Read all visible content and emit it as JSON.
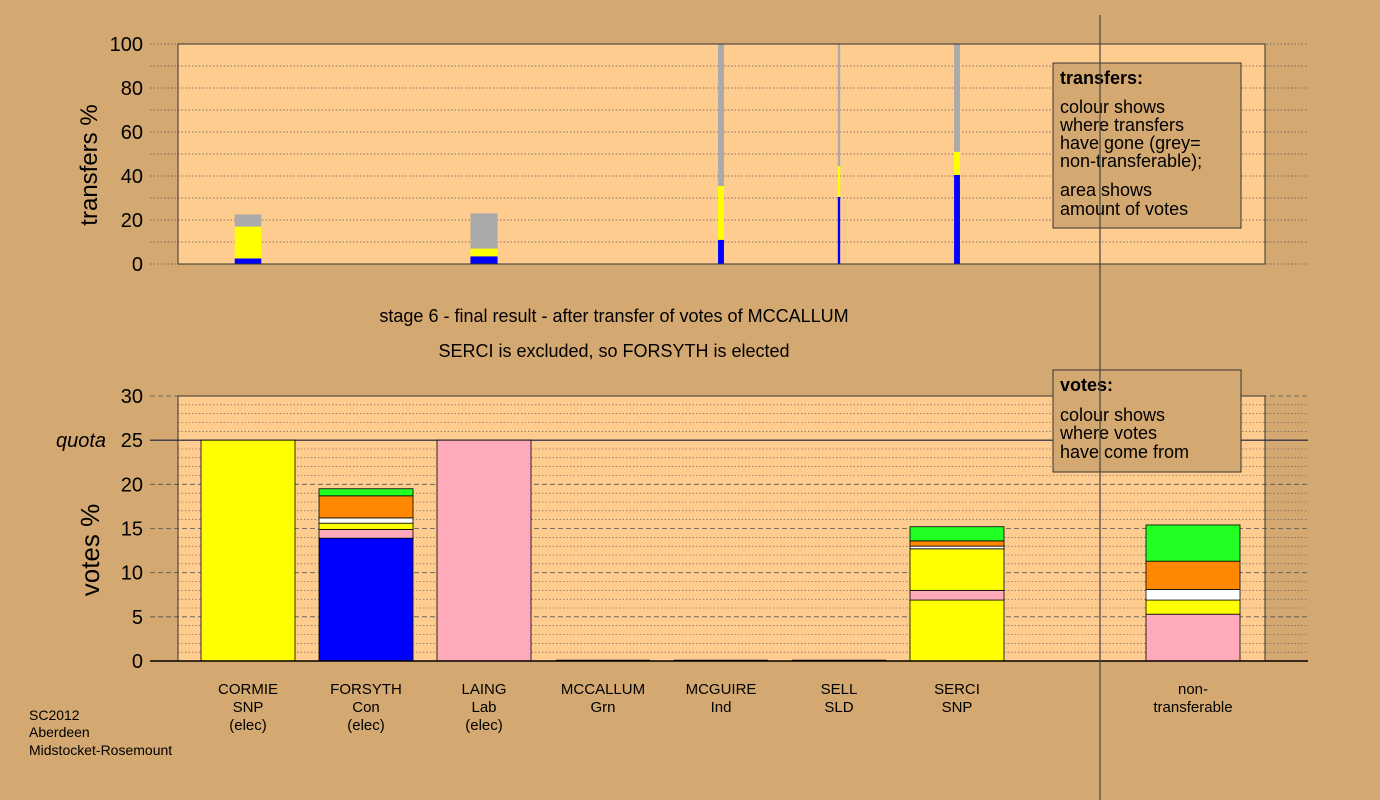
{
  "subtitle_lines": [
    "stage 6 - final result - after transfer of votes of MCCALLUM",
    "SERCI is excluded, so FORSYTH is elected"
  ],
  "footer_lines": [
    "SC2012",
    "Aberdeen",
    "Midstocket-Rosemount"
  ],
  "colors": {
    "background": "#d4a871",
    "plot": "#ffcc8f",
    "SNP": "#ffff00",
    "Con": "#0000ff",
    "Lab": "#ffaabb",
    "Grn": "#22ff22",
    "Ind": "#ff8800",
    "SLD": "#ffffff",
    "nontransferable": "#aaaaaa"
  },
  "chart_data": [
    {
      "type": "bar",
      "stacked": true,
      "ylabel": "transfers %",
      "ylim": [
        0,
        100
      ],
      "yticks": [
        0,
        20,
        40,
        60,
        80,
        100
      ],
      "legend": {
        "position": "top-right",
        "title": "transfers:",
        "lines": [
          "colour shows",
          "where transfers",
          "have gone (grey=",
          "non-transferable);",
          "area shows",
          "amount of votes"
        ]
      },
      "bars": [
        {
          "column": "CORMIE",
          "width_pct": 22.5,
          "segments": [
            {
              "party": "Con",
              "value": 2.5
            },
            {
              "party": "SNP",
              "value": 14.5
            },
            {
              "party": "nontransferable",
              "value": 5.5
            }
          ]
        },
        {
          "column": "LAING",
          "width_pct": 23.0,
          "segments": [
            {
              "party": "Con",
              "value": 3.5
            },
            {
              "party": "SNP",
              "value": 3.5
            },
            {
              "party": "nontransferable",
              "value": 16.0
            }
          ]
        },
        {
          "column": "MCGUIRE",
          "width_pct": 5.0,
          "segments": [
            {
              "party": "Con",
              "value": 11.0
            },
            {
              "party": "SNP",
              "value": 24.5
            },
            {
              "party": "nontransferable",
              "value": 64.5
            }
          ]
        },
        {
          "column": "SELL",
          "width_pct": 2.0,
          "segments": [
            {
              "party": "Con",
              "value": 30.5
            },
            {
              "party": "SNP",
              "value": 14.0
            },
            {
              "party": "nontransferable",
              "value": 55.5
            }
          ]
        },
        {
          "column": "SERCI",
          "width_pct": 5.0,
          "segments": [
            {
              "party": "Con",
              "value": 40.5
            },
            {
              "party": "SNP",
              "value": 10.5
            },
            {
              "party": "nontransferable",
              "value": 49.0
            }
          ]
        }
      ]
    },
    {
      "type": "bar",
      "stacked": true,
      "ylabel": "votes %",
      "ylim": [
        0,
        30
      ],
      "yticks": [
        0,
        5,
        10,
        15,
        20,
        25,
        30
      ],
      "quota": {
        "label": "quota",
        "value": 25
      },
      "legend": {
        "position": "top-right",
        "title": "votes:",
        "lines": [
          "colour shows",
          "where votes",
          "have come from"
        ]
      },
      "categories": [
        {
          "lines": [
            "CORMIE",
            "SNP",
            "(elec)"
          ]
        },
        {
          "lines": [
            "FORSYTH",
            "Con",
            "(elec)"
          ]
        },
        {
          "lines": [
            "LAING",
            "Lab",
            "(elec)"
          ]
        },
        {
          "lines": [
            "MCCALLUM",
            "Grn"
          ]
        },
        {
          "lines": [
            "MCGUIRE",
            "Ind"
          ]
        },
        {
          "lines": [
            "SELL",
            "SLD"
          ]
        },
        {
          "lines": [
            "SERCI",
            "SNP"
          ]
        },
        {
          "lines": []
        },
        {
          "lines": [
            "non-",
            "transferable"
          ]
        }
      ],
      "bars": [
        {
          "category": 0,
          "segments": [
            {
              "party": "SNP",
              "value": 25.0
            }
          ]
        },
        {
          "category": 1,
          "segments": [
            {
              "party": "Con",
              "value": 13.9
            },
            {
              "party": "Lab",
              "value": 1.0
            },
            {
              "party": "SNP",
              "value": 0.7
            },
            {
              "party": "SLD",
              "value": 0.6
            },
            {
              "party": "Ind",
              "value": 2.5
            },
            {
              "party": "Grn",
              "value": 0.8
            }
          ]
        },
        {
          "category": 2,
          "segments": [
            {
              "party": "Lab",
              "value": 25.0
            }
          ]
        },
        {
          "category": 3,
          "segments": []
        },
        {
          "category": 4,
          "segments": []
        },
        {
          "category": 5,
          "segments": []
        },
        {
          "category": 6,
          "segments": [
            {
              "party": "SNP",
              "value": 6.9
            },
            {
              "party": "Lab",
              "value": 1.1
            },
            {
              "party": "SNP",
              "value": 4.7
            },
            {
              "party": "SLD",
              "value": 0.3
            },
            {
              "party": "Ind",
              "value": 0.6
            },
            {
              "party": "Grn",
              "value": 1.6
            }
          ]
        },
        {
          "category": 8,
          "segments": [
            {
              "party": "Lab",
              "value": 5.3
            },
            {
              "party": "SNP",
              "value": 1.6
            },
            {
              "party": "SLD",
              "value": 1.2
            },
            {
              "party": "Ind",
              "value": 3.2
            },
            {
              "party": "Grn",
              "value": 4.1
            }
          ]
        }
      ]
    }
  ]
}
